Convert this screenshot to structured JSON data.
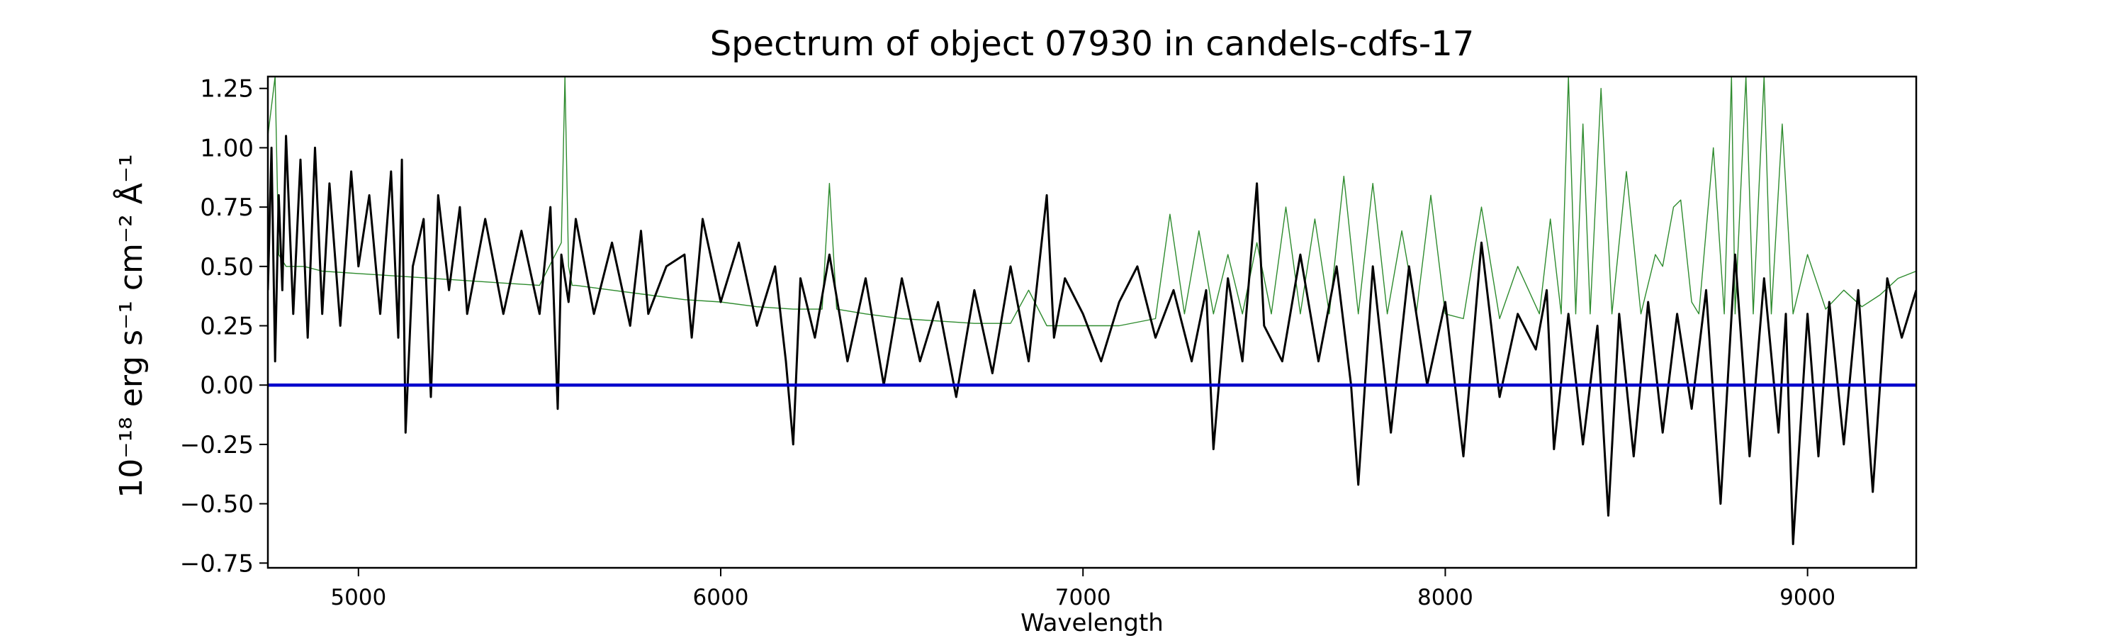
{
  "chart_data": {
    "type": "line",
    "title": "Spectrum of object 07930 in candels-cdfs-17",
    "xlabel": "Wavelength",
    "ylabel": "10⁻¹⁸ erg s⁻¹ cm⁻² Å⁻¹",
    "xlim": [
      4750,
      9300
    ],
    "ylim": [
      -0.77,
      1.3
    ],
    "xticks": [
      5000,
      6000,
      7000,
      8000,
      9000
    ],
    "yticks": [
      -0.75,
      -0.5,
      -0.25,
      0.0,
      0.25,
      0.5,
      0.75,
      1.0,
      1.25
    ],
    "xtick_labels": [
      "5000",
      "6000",
      "7000",
      "8000",
      "9000"
    ],
    "ytick_labels": [
      "−0.75",
      "−0.50",
      "−0.25",
      "0.00",
      "0.25",
      "0.50",
      "0.75",
      "1.00",
      "1.25"
    ],
    "grid": false,
    "legend": "none",
    "series": [
      {
        "color": "#2e8b2e",
        "x": [
          4750,
          4770,
          4780,
          4800,
          4850,
          4900,
          5000,
          5100,
          5200,
          5300,
          5400,
          5500,
          5560,
          5570,
          5580,
          5590,
          5600,
          5700,
          5800,
          5900,
          6000,
          6100,
          6200,
          6280,
          6300,
          6320,
          6400,
          6500,
          6600,
          6700,
          6800,
          6850,
          6900,
          7000,
          7100,
          7200,
          7240,
          7280,
          7320,
          7360,
          7400,
          7440,
          7480,
          7520,
          7560,
          7600,
          7640,
          7680,
          7720,
          7760,
          7800,
          7840,
          7880,
          7920,
          7960,
          8000,
          8050,
          8100,
          8150,
          8200,
          8260,
          8290,
          8320,
          8340,
          8360,
          8380,
          8400,
          8430,
          8460,
          8500,
          8540,
          8580,
          8600,
          8630,
          8650,
          8680,
          8700,
          8740,
          8770,
          8790,
          8800,
          8830,
          8850,
          8880,
          8900,
          8930,
          8960,
          9000,
          9050,
          9100,
          9150,
          9200,
          9250,
          9300
        ],
        "y": [
          1.05,
          1.3,
          0.55,
          0.5,
          0.5,
          0.48,
          0.47,
          0.46,
          0.45,
          0.44,
          0.43,
          0.42,
          0.6,
          1.3,
          0.5,
          0.42,
          0.42,
          0.4,
          0.38,
          0.36,
          0.35,
          0.33,
          0.32,
          0.32,
          0.85,
          0.32,
          0.3,
          0.28,
          0.27,
          0.26,
          0.26,
          0.4,
          0.25,
          0.25,
          0.25,
          0.28,
          0.72,
          0.3,
          0.65,
          0.3,
          0.55,
          0.3,
          0.6,
          0.3,
          0.75,
          0.3,
          0.7,
          0.3,
          0.88,
          0.3,
          0.85,
          0.3,
          0.65,
          0.3,
          0.8,
          0.3,
          0.28,
          0.75,
          0.28,
          0.5,
          0.3,
          0.7,
          0.3,
          1.3,
          0.3,
          1.1,
          0.3,
          1.25,
          0.3,
          0.9,
          0.3,
          0.55,
          0.5,
          0.75,
          0.78,
          0.35,
          0.3,
          1.0,
          0.3,
          1.3,
          0.3,
          1.3,
          0.3,
          1.3,
          0.3,
          1.1,
          0.3,
          0.55,
          0.32,
          0.4,
          0.33,
          0.38,
          0.45,
          0.48
        ]
      },
      {
        "color": "#000000",
        "x": [
          4750,
          4760,
          4770,
          4780,
          4790,
          4800,
          4820,
          4840,
          4860,
          4880,
          4900,
          4920,
          4950,
          4980,
          5000,
          5030,
          5060,
          5090,
          5110,
          5120,
          5130,
          5150,
          5180,
          5200,
          5220,
          5250,
          5280,
          5300,
          5350,
          5400,
          5450,
          5500,
          5530,
          5550,
          5560,
          5580,
          5600,
          5650,
          5700,
          5750,
          5780,
          5800,
          5850,
          5900,
          5920,
          5950,
          6000,
          6050,
          6100,
          6150,
          6180,
          6200,
          6220,
          6260,
          6300,
          6350,
          6400,
          6450,
          6500,
          6550,
          6600,
          6650,
          6700,
          6750,
          6800,
          6850,
          6900,
          6920,
          6950,
          7000,
          7050,
          7100,
          7150,
          7200,
          7250,
          7300,
          7340,
          7360,
          7400,
          7440,
          7480,
          7500,
          7550,
          7600,
          7650,
          7700,
          7740,
          7760,
          7800,
          7850,
          7900,
          7950,
          8000,
          8050,
          8100,
          8150,
          8200,
          8250,
          8280,
          8300,
          8340,
          8380,
          8420,
          8450,
          8480,
          8520,
          8560,
          8600,
          8640,
          8680,
          8720,
          8760,
          8800,
          8840,
          8880,
          8920,
          8940,
          8960,
          9000,
          9030,
          9060,
          9100,
          9140,
          9180,
          9220,
          9260,
          9300
        ],
        "y": [
          0.4,
          1.0,
          0.1,
          0.8,
          0.4,
          1.05,
          0.3,
          0.95,
          0.2,
          1.0,
          0.3,
          0.85,
          0.25,
          0.9,
          0.5,
          0.8,
          0.3,
          0.9,
          0.2,
          0.95,
          -0.2,
          0.5,
          0.7,
          -0.05,
          0.8,
          0.4,
          0.75,
          0.3,
          0.7,
          0.3,
          0.65,
          0.3,
          0.75,
          -0.1,
          0.55,
          0.35,
          0.7,
          0.3,
          0.6,
          0.25,
          0.65,
          0.3,
          0.5,
          0.55,
          0.2,
          0.7,
          0.35,
          0.6,
          0.25,
          0.5,
          0.1,
          -0.25,
          0.45,
          0.2,
          0.55,
          0.1,
          0.45,
          0.0,
          0.45,
          0.1,
          0.35,
          -0.05,
          0.4,
          0.05,
          0.5,
          0.1,
          0.8,
          0.2,
          0.45,
          0.3,
          0.1,
          0.35,
          0.5,
          0.2,
          0.4,
          0.1,
          0.4,
          -0.27,
          0.45,
          0.1,
          0.85,
          0.25,
          0.1,
          0.55,
          0.1,
          0.5,
          0.0,
          -0.42,
          0.5,
          -0.2,
          0.5,
          0.0,
          0.35,
          -0.3,
          0.6,
          -0.05,
          0.3,
          0.15,
          0.4,
          -0.27,
          0.3,
          -0.25,
          0.25,
          -0.55,
          0.3,
          -0.3,
          0.35,
          -0.2,
          0.3,
          -0.1,
          0.4,
          -0.5,
          0.55,
          -0.3,
          0.45,
          -0.2,
          0.3,
          -0.67,
          0.3,
          -0.3,
          0.35,
          -0.25,
          0.4,
          -0.45,
          0.45,
          0.2,
          0.4
        ]
      },
      {
        "color": "#0000cc",
        "x": [
          4750,
          9300
        ],
        "y": [
          0.0,
          0.0
        ]
      }
    ]
  }
}
